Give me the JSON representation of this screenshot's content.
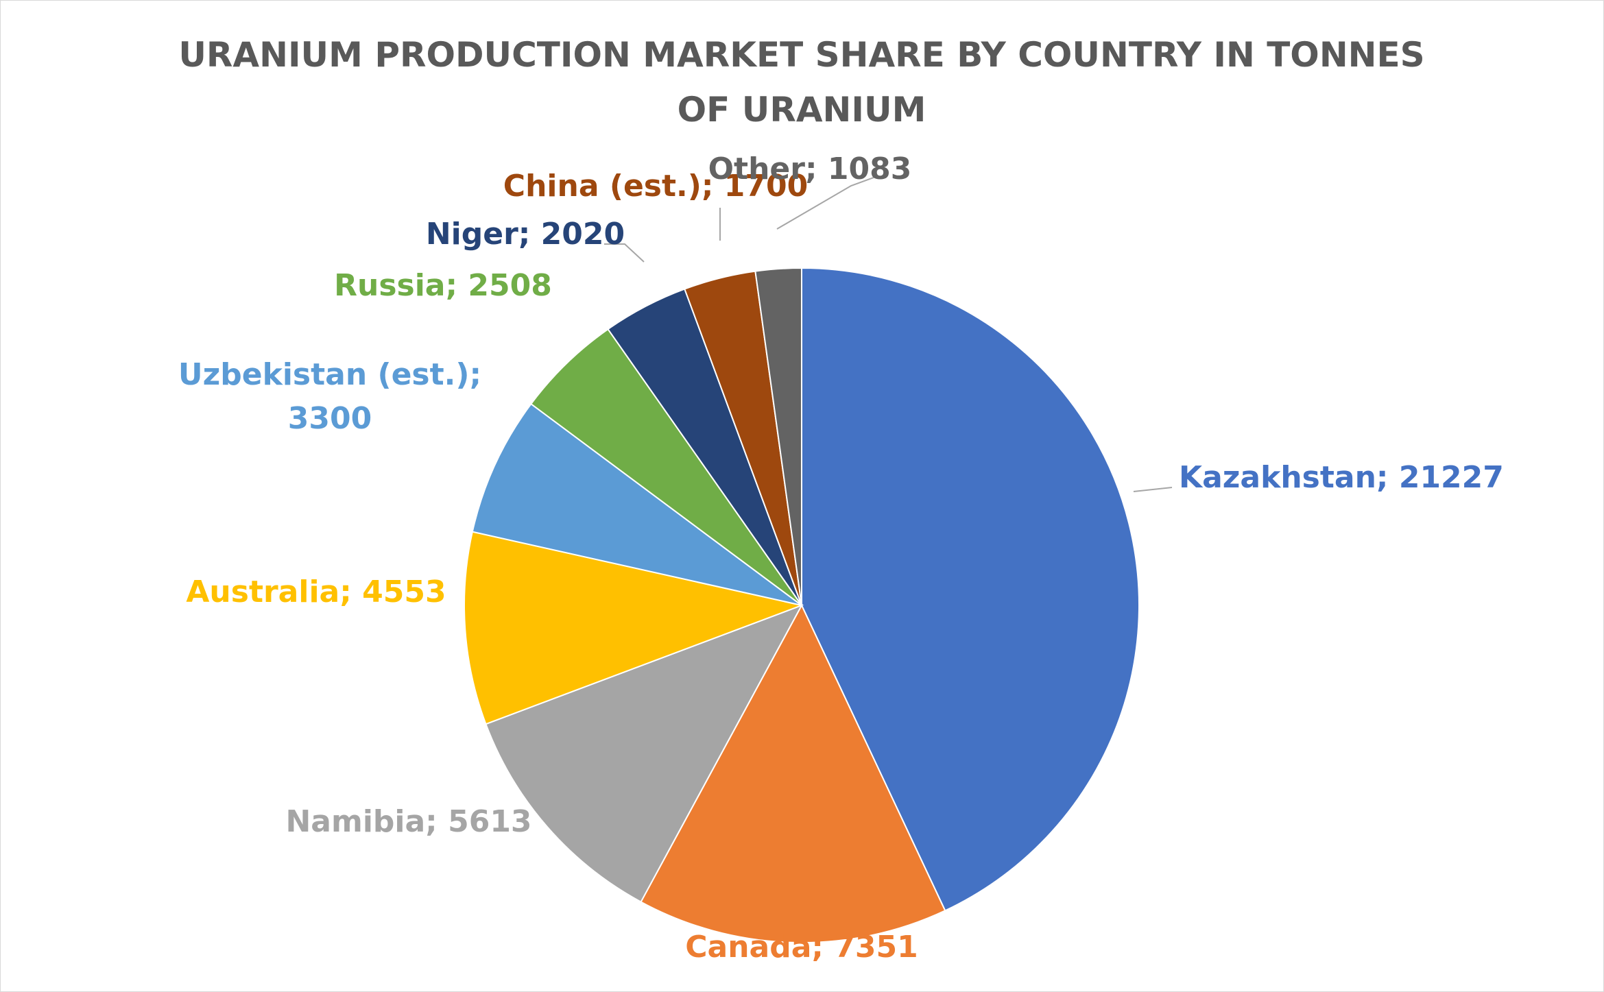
{
  "chart_data": {
    "type": "pie",
    "title_lines": [
      "URANIUM PRODUCTION MARKET SHARE BY COUNTRY IN TONNES",
      "OF URANIUM"
    ],
    "slices": [
      {
        "label": "Kazakhstan",
        "value": 21227,
        "color": "#4472C4",
        "text": "Kazakhstan; 21227"
      },
      {
        "label": "Canada",
        "value": 7351,
        "color": "#ED7D31",
        "text": "Canada; 7351"
      },
      {
        "label": "Namibia",
        "value": 5613,
        "color": "#A5A5A5",
        "text": "Namibia; 5613"
      },
      {
        "label": "Australia",
        "value": 4553,
        "color": "#FFC000",
        "text": "Australia; 4553"
      },
      {
        "label": "Uzbekistan (est.)",
        "value": 3300,
        "color": "#5B9BD5",
        "text": "Uzbekistan (est.);|3300"
      },
      {
        "label": "Russia",
        "value": 2508,
        "color": "#70AD47",
        "text": "Russia; 2508"
      },
      {
        "label": "Niger",
        "value": 2020,
        "color": "#264478",
        "text": "Niger; 2020"
      },
      {
        "label": "China (est.)",
        "value": 1700,
        "color": "#9E480E",
        "text": "China (est.); 1700"
      },
      {
        "label": "Other",
        "value": 1083,
        "color": "#636363",
        "text": "Other; 1083"
      }
    ],
    "legend": "none",
    "data_labels": "outside, category; value"
  }
}
